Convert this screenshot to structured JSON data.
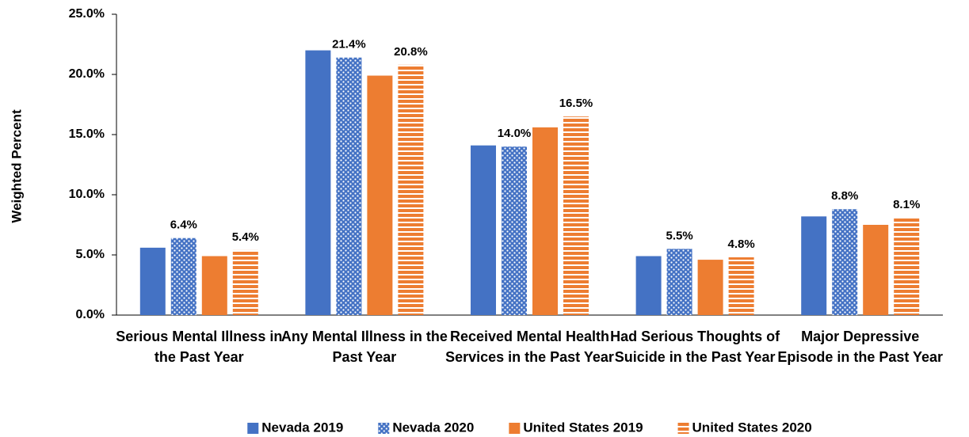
{
  "chart_data": {
    "type": "bar",
    "y_label": "Weighted Percent",
    "categories": [
      "Serious Mental Illness in the Past Year",
      "Any Mental Illness in the Past Year",
      "Received Mental Health Services in the Past Year",
      "Had Serious Thoughts of Suicide in the Past Year",
      "Major Depressive Episode in the Past Year"
    ],
    "series": [
      {
        "name": "Nevada 2019",
        "color": "#4472c4",
        "pattern": "solid",
        "values": [
          5.6,
          22.0,
          14.1,
          4.9,
          8.2
        ]
      },
      {
        "name": "Nevada 2020",
        "color": "#4472c4",
        "pattern": "dots",
        "values": [
          6.4,
          21.4,
          14.0,
          5.5,
          8.8
        ],
        "value_labels": [
          "6.4%",
          "21.4%",
          "14.0%",
          "5.5%",
          "8.8%"
        ]
      },
      {
        "name": "United States 2019",
        "color": "#ed7d31",
        "pattern": "solid",
        "values": [
          4.9,
          19.9,
          15.6,
          4.6,
          7.5
        ]
      },
      {
        "name": "United States 2020",
        "color": "#ed7d31",
        "pattern": "stripes",
        "values": [
          5.4,
          20.8,
          16.5,
          4.8,
          8.1
        ],
        "value_labels": [
          "5.4%",
          "20.8%",
          "16.5%",
          "4.8%",
          "8.1%"
        ]
      }
    ],
    "ylim": [
      0,
      25
    ],
    "yticks": [
      {
        "value": 0,
        "label": "0.0%"
      },
      {
        "value": 5,
        "label": "5.0%"
      },
      {
        "value": 10,
        "label": "10.0%"
      },
      {
        "value": 15,
        "label": "15.0%"
      },
      {
        "value": 20,
        "label": "20.0%"
      },
      {
        "value": 25,
        "label": "25.0%"
      }
    ],
    "legend": "bottom"
  }
}
